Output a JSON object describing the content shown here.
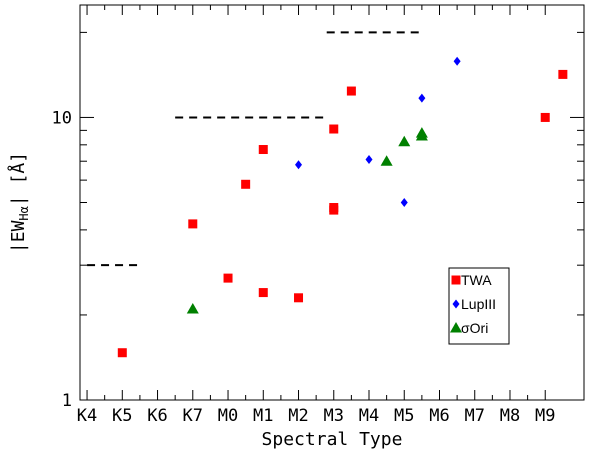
{
  "chart_data": {
    "type": "scatter",
    "xlabel": "Spectral Type",
    "ylabel_main": "|EW",
    "ylabel_sub": "Hα",
    "ylabel_tail": "|  [Å]",
    "x_categories": [
      "K4",
      "K5",
      "K6",
      "K7",
      "M0",
      "M1",
      "M2",
      "M3",
      "M4",
      "M5",
      "M6",
      "M7",
      "M8",
      "M9"
    ],
    "y_scale": "log",
    "ylim": [
      1,
      25
    ],
    "y_tick_labels": [
      {
        "value": 1,
        "label": "1"
      },
      {
        "value": 10,
        "label": "10"
      }
    ],
    "y_minor_ticks": [
      2,
      3,
      4,
      5,
      6,
      7,
      8,
      9,
      20
    ],
    "series": [
      {
        "name": "TWA",
        "marker": "square",
        "color": "#ff0000",
        "points": [
          {
            "x": 1,
            "y": 1.47
          },
          {
            "x": 3,
            "y": 4.2
          },
          {
            "x": 4,
            "y": 2.7
          },
          {
            "x": 4.5,
            "y": 5.8
          },
          {
            "x": 5,
            "y": 7.7
          },
          {
            "x": 5,
            "y": 2.4
          },
          {
            "x": 6,
            "y": 2.3
          },
          {
            "x": 7,
            "y": 9.1
          },
          {
            "x": 7,
            "y": 4.8
          },
          {
            "x": 7,
            "y": 4.7
          },
          {
            "x": 7.5,
            "y": 12.4
          },
          {
            "x": 13,
            "y": 10.0
          },
          {
            "x": 13.5,
            "y": 14.2
          }
        ]
      },
      {
        "name": "LupIII",
        "marker": "diamond",
        "color": "#0000ff",
        "points": [
          {
            "x": 6,
            "y": 6.8
          },
          {
            "x": 8,
            "y": 7.1
          },
          {
            "x": 9,
            "y": 5.0
          },
          {
            "x": 9.5,
            "y": 11.7
          },
          {
            "x": 10.5,
            "y": 15.8
          }
        ]
      },
      {
        "name": "σOri",
        "marker": "triangle",
        "color": "#008000",
        "points": [
          {
            "x": 3,
            "y": 2.1
          },
          {
            "x": 8.5,
            "y": 7.0
          },
          {
            "x": 9,
            "y": 8.2
          },
          {
            "x": 9.5,
            "y": 8.8
          },
          {
            "x": 9.5,
            "y": 8.6
          }
        ]
      }
    ],
    "reference_lines": [
      {
        "x_start": 0,
        "x_end": 1.5,
        "y": 3.0
      },
      {
        "x_start": 2.5,
        "x_end": 6.8,
        "y": 10.0
      },
      {
        "x_start": 6.8,
        "x_end": 9.5,
        "y": 20.0
      }
    ],
    "legend": {
      "placement": "lower-right",
      "entries": [
        "TWA",
        "LupIII",
        "σOri"
      ]
    },
    "grid": false
  }
}
